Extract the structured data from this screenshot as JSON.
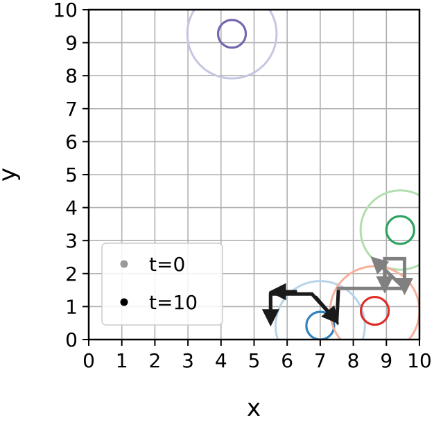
{
  "chart_data": {
    "type": "scatter",
    "xlabel": "x",
    "ylabel": "y",
    "xlim": [
      0,
      10
    ],
    "ylim": [
      0,
      10
    ],
    "xticks": [
      "0",
      "1",
      "2",
      "3",
      "4",
      "5",
      "6",
      "7",
      "8",
      "9",
      "10"
    ],
    "yticks": [
      "0",
      "1",
      "2",
      "3",
      "4",
      "5",
      "6",
      "7",
      "8",
      "9",
      "10"
    ],
    "grid": true,
    "legend": {
      "placement": "lower-left",
      "entries": [
        {
          "label": "t=0",
          "color": "#999999"
        },
        {
          "label": "t=10",
          "color": "#000000"
        }
      ]
    },
    "circles": [
      {
        "cx": 4.33,
        "cy": 9.27,
        "r": 1.35,
        "color": "#c4c6e3",
        "phase": "t=0"
      },
      {
        "cx": 4.33,
        "cy": 9.27,
        "r": 0.42,
        "color": "#7566ad",
        "phase": "t=10"
      },
      {
        "cx": 9.42,
        "cy": 3.32,
        "r": 1.2,
        "color": "#b2deae",
        "phase": "t=0"
      },
      {
        "cx": 9.42,
        "cy": 3.32,
        "r": 0.42,
        "color": "#2ca25f",
        "phase": "t=10"
      },
      {
        "cx": 7.0,
        "cy": 0.42,
        "r": 1.35,
        "color": "#b7d3e8",
        "phase": "t=0"
      },
      {
        "cx": 7.0,
        "cy": 0.42,
        "r": 0.42,
        "color": "#3182bd",
        "phase": "t=10"
      },
      {
        "cx": 8.65,
        "cy": 0.87,
        "r": 1.35,
        "color": "#f7b09b",
        "phase": "t=0"
      },
      {
        "cx": 8.65,
        "cy": 0.87,
        "r": 0.42,
        "color": "#de2d26",
        "phase": "t=10"
      }
    ],
    "paths": [
      {
        "phase": "t=0",
        "color": "#808080",
        "points": [
          [
            7.55,
            1.55
          ],
          [
            8.95,
            1.55
          ],
          [
            8.95,
            2.45
          ],
          [
            9.55,
            2.45
          ],
          [
            9.55,
            1.55
          ],
          [
            7.55,
            1.55
          ],
          [
            7.55,
            1.6
          ]
        ],
        "arrows": [
          [
            [
              8.95,
              2.45
            ],
            [
              8.95,
              1.5
            ]
          ],
          [
            [
              9.55,
              2.45
            ],
            [
              9.55,
              1.45
            ]
          ],
          [
            [
              9.55,
              1.55
            ],
            [
              8.6,
              2.45
            ]
          ]
        ]
      },
      {
        "phase": "t=10",
        "color": "#1a1a1a",
        "points": [
          [
            7.55,
            1.5
          ],
          [
            7.5,
            0.55
          ],
          [
            6.75,
            1.38
          ],
          [
            5.5,
            1.38
          ],
          [
            5.5,
            0.55
          ]
        ],
        "arrows": [
          [
            [
              6.85,
              1.3
            ],
            [
              7.5,
              0.55
            ]
          ],
          [
            [
              6.3,
              1.45
            ],
            [
              5.55,
              1.45
            ]
          ],
          [
            [
              5.5,
              1.38
            ],
            [
              5.5,
              0.5
            ]
          ]
        ]
      }
    ]
  }
}
